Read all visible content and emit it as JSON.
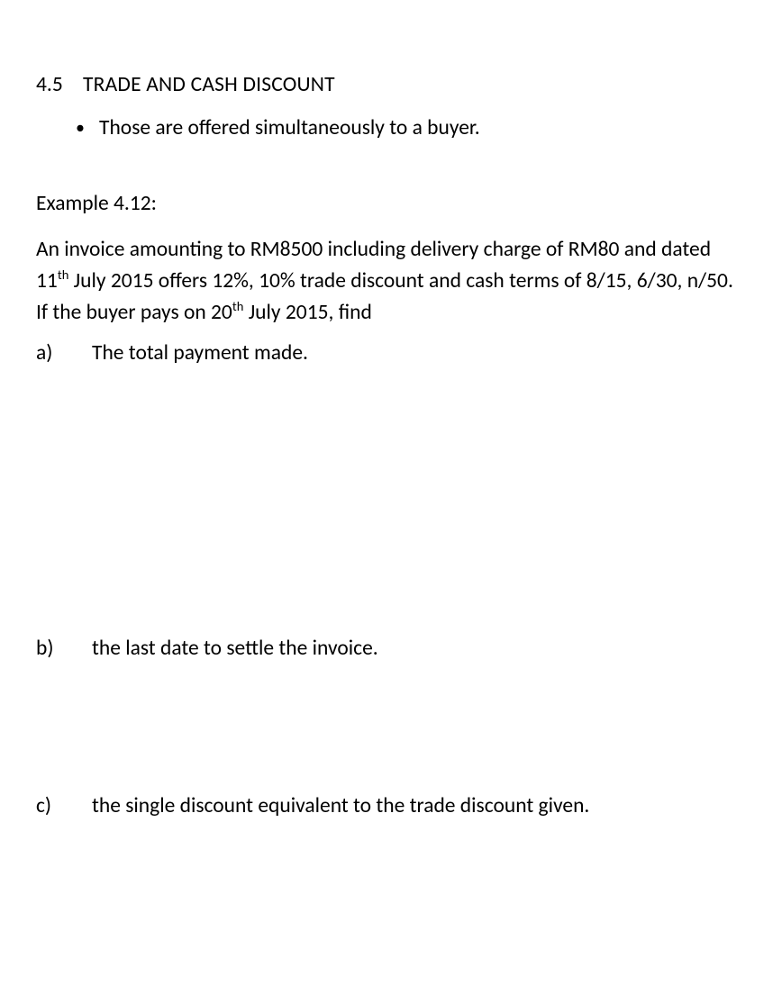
{
  "section": {
    "number": "4.5",
    "title": "TRADE AND CASH DISCOUNT",
    "bullet": "Those are offered simultaneously to a buyer."
  },
  "example": {
    "label": "Example 4.12:",
    "statement_before_sup1": "An invoice amounting to RM8500 including delivery charge of RM80 and dated 11",
    "sup1": "th",
    "statement_mid": " July 2015 offers 12%, 10% trade discount and cash terms of 8/15, 6/30, n/50. If the buyer pays on 20",
    "sup2": "th",
    "statement_after": " July 2015, find"
  },
  "items": {
    "a": {
      "letter": "a)",
      "text": "The total payment made."
    },
    "b": {
      "letter": "b)",
      "text": "the last date to settle the invoice."
    },
    "c": {
      "letter": "c)",
      "text": "the single discount equivalent to the trade discount given."
    }
  }
}
